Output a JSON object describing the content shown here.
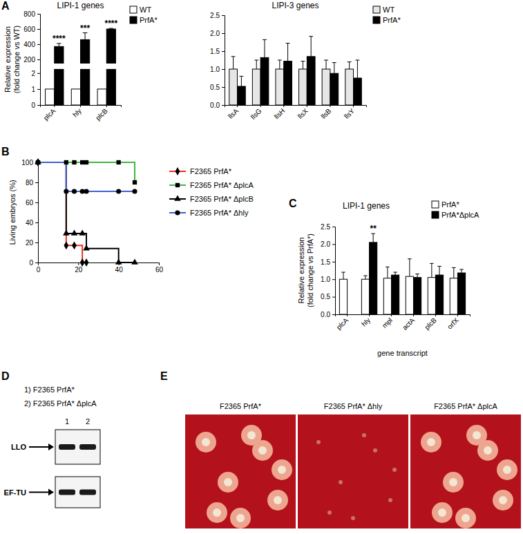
{
  "panel_labels": [
    "A",
    "B",
    "C",
    "D",
    "E"
  ],
  "chart_data": [
    {
      "type": "bar",
      "title": "LIPI-1 genes",
      "y_label": [
        "Relative expression",
        "(fold change vs WT)"
      ],
      "categories": [
        "plcA",
        "hly",
        "plcB"
      ],
      "series": [
        {
          "name": "WT",
          "color": "#ffffff",
          "values": [
            1,
            1,
            1
          ]
        },
        {
          "name": "PrfA*",
          "color": "#000000",
          "values": [
            370,
            460,
            600
          ],
          "errors": [
            40,
            90,
            8
          ],
          "annotations": [
            "****",
            "***",
            "****"
          ]
        }
      ],
      "ylim": [
        0,
        800
      ],
      "yticks": [
        0,
        1,
        2,
        200,
        400,
        600,
        800
      ],
      "legend": "upper right"
    },
    {
      "type": "bar",
      "title": "LIPI-3 genes",
      "categories": [
        "llsA",
        "llsG",
        "llsH",
        "llsX",
        "llsB",
        "llsY"
      ],
      "series": [
        {
          "name": "WT",
          "color": "#e6e6e6",
          "values": [
            1,
            1,
            1,
            1,
            1,
            1
          ],
          "errors": [
            0.35,
            0.25,
            0.25,
            0.22,
            0.25,
            0.2
          ]
        },
        {
          "name": "PrfA*",
          "color": "#000000",
          "values": [
            0.52,
            1.32,
            1.22,
            1.35,
            0.88,
            0.75
          ],
          "errors": [
            0.28,
            0.5,
            0.5,
            0.56,
            0.3,
            0.5
          ]
        }
      ],
      "ylim": [
        0,
        2.5
      ],
      "yticks": [
        {
          "value": 0,
          "label": "0.0"
        },
        {
          "value": 0.5,
          "label": "0.5"
        },
        {
          "value": 1,
          "label": "1.0"
        },
        {
          "value": 1.5,
          "label": "1.5"
        },
        {
          "value": 2,
          "label": "2.0"
        },
        {
          "value": 2.5,
          "label": "2.5"
        }
      ],
      "legend": "upper right"
    },
    {
      "type": "line",
      "y_label": [
        "Living embryos (%)"
      ],
      "x": [
        0,
        14,
        18,
        22,
        24,
        40,
        48
      ],
      "series": [
        {
          "name": "F2365 PrfA*",
          "color": "#e8311a",
          "marker": "diamond",
          "values": [
            100,
            17,
            17,
            0,
            0,
            null,
            null
          ]
        },
        {
          "name": "F2365 PrfA* ΔplcA",
          "color": "#3cb83c",
          "marker": "square",
          "values": [
            100,
            100,
            100,
            100,
            100,
            100,
            80
          ]
        },
        {
          "name": "F2365 PrfA* ΔplcB",
          "color": "#000000",
          "marker": "triangle",
          "values": [
            100,
            29,
            29,
            29,
            14,
            0,
            0
          ]
        },
        {
          "name": "F2365 PrfA* Δhly",
          "color": "#3f5fd0",
          "marker": "circle",
          "values": [
            100,
            71,
            71,
            71,
            71,
            71,
            71
          ]
        }
      ],
      "xlim": [
        0,
        60
      ],
      "xticks": [
        0,
        20,
        40,
        60
      ],
      "ylim": [
        0,
        100
      ],
      "yticks": [
        0,
        20,
        40,
        60,
        80,
        100
      ],
      "line_style": "step",
      "legend": "right"
    },
    {
      "type": "bar",
      "title": "LIPI-1 genes",
      "x_label": "gene transcript",
      "y_label": [
        "Relative expression",
        "(fold change vs PrfA*)"
      ],
      "categories": [
        "plcA",
        "hly",
        "mpl",
        "actA",
        "plcB",
        "orfX"
      ],
      "series": [
        {
          "name": "PrfA*",
          "color": "#ffffff",
          "values": [
            1,
            1,
            1.03,
            1.08,
            1.05,
            1.03
          ],
          "errors": [
            0.2,
            0.1,
            0.32,
            0.5,
            0.4,
            0.3
          ]
        },
        {
          "name": "PrfA*ΔplcA",
          "color": "#000000",
          "values": [
            null,
            2.05,
            1.12,
            1.05,
            1.12,
            1.18
          ],
          "errors": [
            null,
            0.25,
            0.08,
            0.1,
            0.25,
            0.1
          ],
          "annotations": [
            null,
            "**",
            null,
            null,
            null,
            null
          ]
        }
      ],
      "ylim": [
        0,
        2.5
      ],
      "yticks": [
        {
          "value": 0,
          "label": "0.0"
        },
        {
          "value": 0.5,
          "label": "0.5"
        },
        {
          "value": 1,
          "label": "1.0"
        },
        {
          "value": 1.5,
          "label": "1.5"
        },
        {
          "value": 2,
          "label": "2.0"
        },
        {
          "value": 2.5,
          "label": "2.5"
        }
      ],
      "legend": "upper right"
    }
  ],
  "blot": {
    "lanes_legend": [
      "1) F2365 PrfA*",
      "2) F2365 PrfA* ΔplcA"
    ],
    "lanes": [
      "1",
      "2"
    ],
    "bands": [
      "LLO",
      "EF-TU"
    ]
  },
  "plates": [
    {
      "label": "F2365 PrfA*",
      "hemolysis": true
    },
    {
      "label": "F2365 PrfA* Δhly",
      "hemolysis": false
    },
    {
      "label": "F2365 PrfA* ΔplcA",
      "hemolysis": true
    }
  ]
}
